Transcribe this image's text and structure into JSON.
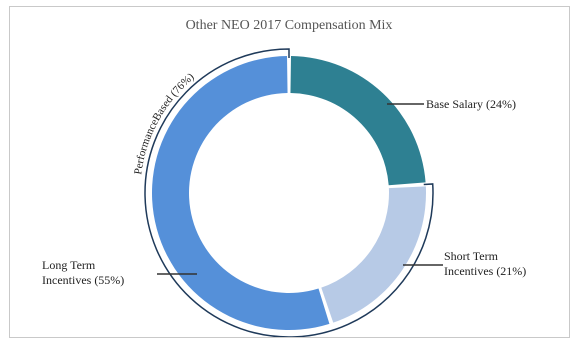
{
  "chart_data": {
    "type": "donut",
    "title": "Other NEO 2017 Compensation Mix",
    "slices": [
      {
        "name": "Base Salary",
        "value": 24,
        "label_line1": "Base Salary (24%)",
        "label_line2": "",
        "color": "#2e8092"
      },
      {
        "name": "Short Term Incentives",
        "value": 21,
        "label_line1": "Short Term",
        "label_line2": "Incentives (21%)",
        "color": "#b7cae6"
      },
      {
        "name": "Long Term Incentives",
        "value": 55,
        "label_line1": "Long Term",
        "label_line2": "Incentives (55%)",
        "color": "#5590d9"
      }
    ],
    "bracket": {
      "label": "PerformanceBased (76%)",
      "value": 76,
      "color": "#1f3a5a"
    }
  }
}
